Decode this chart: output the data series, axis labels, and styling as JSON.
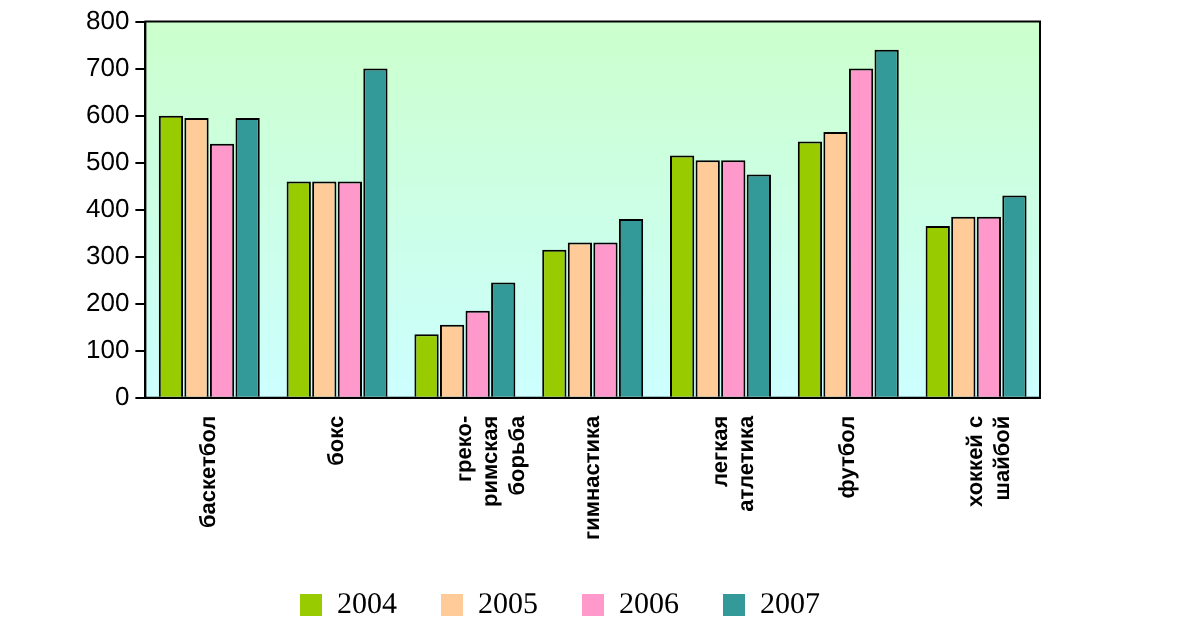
{
  "chart_data": {
    "type": "bar",
    "categories": [
      "баскетбол",
      "бокс",
      "греко-\nримская\nборьба",
      "гимнастика",
      "легкая\nатлетика",
      "футбол",
      "хоккей с\nшайбой"
    ],
    "series": [
      {
        "name": "2004",
        "color": "#99cc00",
        "values": [
          600,
          460,
          135,
          315,
          515,
          545,
          365
        ]
      },
      {
        "name": "2005",
        "color": "#ffcc99",
        "values": [
          595,
          460,
          155,
          330,
          505,
          565,
          385
        ]
      },
      {
        "name": "2006",
        "color": "#ff99cc",
        "values": [
          540,
          460,
          185,
          330,
          505,
          700,
          385
        ]
      },
      {
        "name": "2007",
        "color": "#339999",
        "values": [
          595,
          700,
          245,
          380,
          475,
          740,
          430
        ]
      }
    ],
    "ylim": [
      0,
      800
    ],
    "yticks": [
      0,
      100,
      200,
      300,
      400,
      500,
      600,
      700,
      800
    ],
    "grid": false,
    "legend": "bottom"
  }
}
